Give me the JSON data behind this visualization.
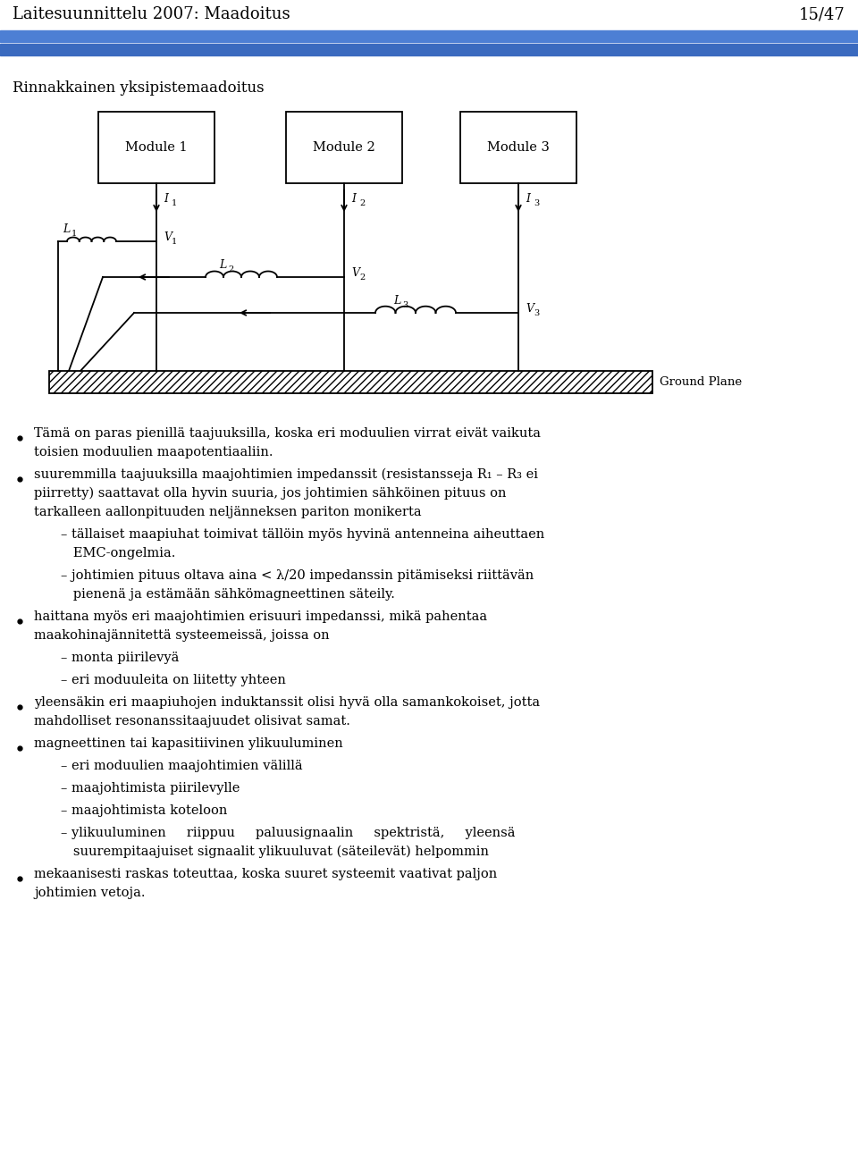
{
  "header_text": "Laitesuunnittelu 2007: Maadoitus",
  "header_page": "15/47",
  "header_bar_color1": "#4d7fd4",
  "header_bar_color2": "#3a6abf",
  "subtitle": "Rinnakkainen yksipistemaadoitus",
  "module_labels": [
    "Module 1",
    "Module 2",
    "Module 3"
  ],
  "current_labels": [
    "I",
    "I",
    "I"
  ],
  "current_subs": [
    "1",
    "2",
    "3"
  ],
  "inductor_labels": [
    "L",
    "L",
    "L"
  ],
  "inductor_subs": [
    "1",
    "2",
    "3"
  ],
  "voltage_labels": [
    "V",
    "V",
    "V"
  ],
  "voltage_subs": [
    "1",
    "2",
    "3"
  ],
  "ground_plane_label": "Ground Plane",
  "bg_color": "#ffffff",
  "text_color": "#000000",
  "line_color": "#000000",
  "font_size_header": 13,
  "font_size_subtitle": 12,
  "font_size_body": 10.5,
  "font_size_circuit": 9
}
